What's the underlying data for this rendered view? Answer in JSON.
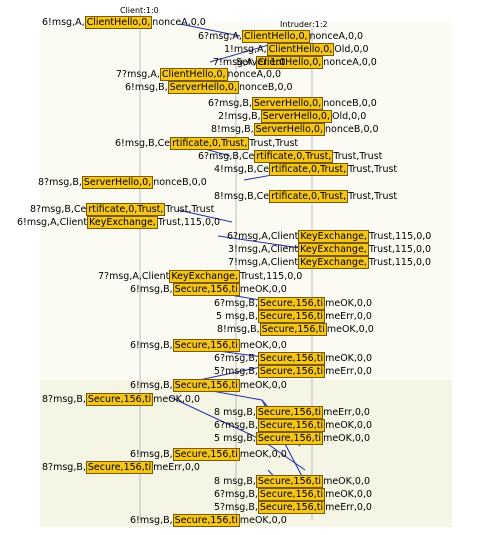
{
  "headers": {
    "client": "Client:1:0",
    "intruder": "Intruder:1:2"
  },
  "rows": [
    {
      "pre": "6!msg,A,",
      "hl": "ClientHello,0,",
      "post": "nonceA,0,0"
    },
    {
      "pre": "6?msg,A,",
      "hl": "ClientHello,0,",
      "post": "nonceA,0,0"
    },
    {
      "pre": "1!msg,A,",
      "hl": "ClientHello,0,",
      "post": "Old,0,0"
    },
    {
      "pre": "7!msg,A,",
      "hl": "ClientHello,0,",
      "post": "nonceA,0,0"
    },
    {
      "pre": "Server:1:0",
      "hl": "",
      "post": ""
    },
    {
      "pre": "7?msg,A,",
      "hl": "ClientHello,0,",
      "post": "nonceA,0,0"
    },
    {
      "pre": "6!msg,B,",
      "hl": "ServerHello,0,",
      "post": "nonceB,0,0"
    },
    {
      "pre": "6?msg,B,",
      "hl": "ServerHello,0,",
      "post": "nonceB,0,0"
    },
    {
      "pre": "2!msg,B,",
      "hl": "ServerHello,0,",
      "post": "Old,0,0"
    },
    {
      "pre": "8!msg,B,",
      "hl": "ServerHello,0,",
      "post": "nonceB,0,0"
    },
    {
      "pre": "6!msg,B,Ce",
      "hl": "rtificate,0,Trust,",
      "post": "Trust,Trust"
    },
    {
      "pre": "6?msg,B,Ce",
      "hl": "rtificate,0,Trust,",
      "post": "Trust,Trust"
    },
    {
      "pre": "4!msg,B,Ce",
      "hl": "rtificate,0,Trust,",
      "post": "Trust,Trust"
    },
    {
      "pre": "8?msg,B,",
      "hl": "ServerHello,0,",
      "post": "nonceB,0,0"
    },
    {
      "pre": "8!msg,B,Ce",
      "hl": "rtificate,0,Trust,",
      "post": "Trust,Trust"
    },
    {
      "pre": "8?msg,B,Ce",
      "hl": "rtificate,0,Trust,",
      "post": "Trust,Trust"
    },
    {
      "pre": "6!msg,A,Client",
      "hl": "KeyExchange,",
      "post": "Trust,115,0,0"
    },
    {
      "pre": "6?msg,A,Client",
      "hl": "KeyExchange,",
      "post": "Trust,115,0,0"
    },
    {
      "pre": "3!msg,A,Client",
      "hl": "KeyExchange,",
      "post": "Trust,115,0,0"
    },
    {
      "pre": "7!msg,A,Client",
      "hl": "KeyExchange,",
      "post": "Trust,115,0,0"
    },
    {
      "pre": "7?msg,A,Client",
      "hl": "KeyExchange,",
      "post": "Trust,115,0,0"
    },
    {
      "pre": "6!msg,B,",
      "hl": "Secure,156,ti",
      "post": "meOK,0,0"
    },
    {
      "pre": "6?msg,B,",
      "hl": "Secure,156,ti",
      "post": "meOK,0,0"
    },
    {
      "pre": "5 msg,B,",
      "hl": "Secure,156,ti",
      "post": "meErr,0,0"
    },
    {
      "pre": "8!msg,B,",
      "hl": "Secure,156,ti",
      "post": "meOK,0,0"
    },
    {
      "pre": "6!msg,B,",
      "hl": "Secure,156,ti",
      "post": "meOK,0,0"
    },
    {
      "pre": "6?msg,B,",
      "hl": "Secure,156,ti",
      "post": "meOK,0,0"
    },
    {
      "pre": "5?msg,B,",
      "hl": "Secure,156,ti",
      "post": "meErr,0,0"
    },
    {
      "pre": "6!msg,B,",
      "hl": "Secure,156,ti",
      "post": "meOK,0,0"
    },
    {
      "pre": "8?msg,B,",
      "hl": "Secure,156,ti",
      "post": "meOK,0,0"
    },
    {
      "pre": "8 msg,B,",
      "hl": "Secure,156,ti",
      "post": "meErr,0,0"
    },
    {
      "pre": "6?msg,B,",
      "hl": "Secure,156,ti",
      "post": "meOK,0,0"
    },
    {
      "pre": "5 msg,B,",
      "hl": "Secure,156,ti",
      "post": "meOK,0,0"
    },
    {
      "pre": "6!msg,B,",
      "hl": "Secure,156,ti",
      "post": "meOK,0,0"
    },
    {
      "pre": "8?msg,B,",
      "hl": "Secure,156,ti",
      "post": "meErr,0,0"
    },
    {
      "pre": "8 msg,B,",
      "hl": "Secure,156,ti",
      "post": "meOK,0,0"
    },
    {
      "pre": "6?msg,B,",
      "hl": "Secure,156,ti",
      "post": "meOK,0,0"
    },
    {
      "pre": "5?msg,B,",
      "hl": "Secure,156,ti",
      "post": "meErr,0,0"
    },
    {
      "pre": "6!msg,B,",
      "hl": "Secure,156,ti",
      "post": "meOK,0,0"
    }
  ],
  "colors": {
    "highlight": "#f5c518",
    "border": "#7a5a00",
    "arrow": "#1f2fa6",
    "lifeline": "#bdbdbd",
    "panel": "#f7f7ea"
  }
}
